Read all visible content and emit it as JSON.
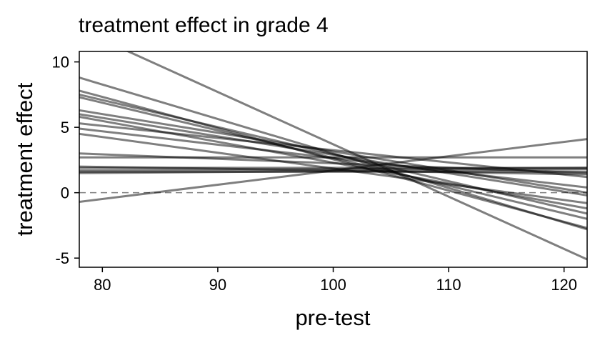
{
  "chart_data": {
    "type": "line",
    "title": "treatment effect in grade 4",
    "xlabel": "pre-test",
    "ylabel": "treatment effect",
    "xlim": [
      78,
      122
    ],
    "ylim": [
      -5.7,
      10.8
    ],
    "xticks": [
      80,
      90,
      100,
      110,
      120
    ],
    "yticks": [
      -5,
      0,
      5,
      10
    ],
    "x_tick_labels": [
      "80",
      "90",
      "100",
      "110",
      "120"
    ],
    "y_tick_labels": [
      "-5",
      "0",
      "5",
      "10"
    ],
    "reference_line": {
      "y": 0,
      "style": "dashed",
      "color": "#808080"
    },
    "grid": false,
    "line_color": "#000000",
    "line_opacity": 0.5,
    "series": [
      {
        "x": [
          78,
          122
        ],
        "values": [
          12.5,
          -5.1
        ]
      },
      {
        "x": [
          78,
          122
        ],
        "values": [
          8.8,
          -2.8
        ]
      },
      {
        "x": [
          78,
          122
        ],
        "values": [
          7.8,
          -2.7
        ]
      },
      {
        "x": [
          78,
          122
        ],
        "values": [
          7.5,
          -1.6
        ]
      },
      {
        "x": [
          78,
          122
        ],
        "values": [
          7.3,
          -2.0
        ]
      },
      {
        "x": [
          78,
          122
        ],
        "values": [
          6.3,
          0.0
        ]
      },
      {
        "x": [
          78,
          122
        ],
        "values": [
          6.0,
          -0.2
        ]
      },
      {
        "x": [
          78,
          122
        ],
        "values": [
          5.8,
          -1.2
        ]
      },
      {
        "x": [
          78,
          122
        ],
        "values": [
          5.3,
          1.2
        ]
      },
      {
        "x": [
          78,
          122
        ],
        "values": [
          4.9,
          0.4
        ]
      },
      {
        "x": [
          78,
          122
        ],
        "values": [
          4.5,
          -0.8
        ]
      },
      {
        "x": [
          78,
          122
        ],
        "values": [
          3.0,
          1.5
        ]
      },
      {
        "x": [
          78,
          122
        ],
        "values": [
          2.7,
          2.7
        ]
      },
      {
        "x": [
          78,
          122
        ],
        "values": [
          2.0,
          1.4
        ]
      },
      {
        "x": [
          78,
          122
        ],
        "values": [
          1.9,
          1.9
        ]
      },
      {
        "x": [
          78,
          122
        ],
        "values": [
          1.7,
          1.9
        ]
      },
      {
        "x": [
          78,
          122
        ],
        "values": [
          1.6,
          1.6
        ]
      },
      {
        "x": [
          78,
          122
        ],
        "values": [
          1.5,
          1.8
        ]
      },
      {
        "x": [
          78,
          122
        ],
        "values": [
          -0.7,
          4.1
        ]
      }
    ]
  }
}
